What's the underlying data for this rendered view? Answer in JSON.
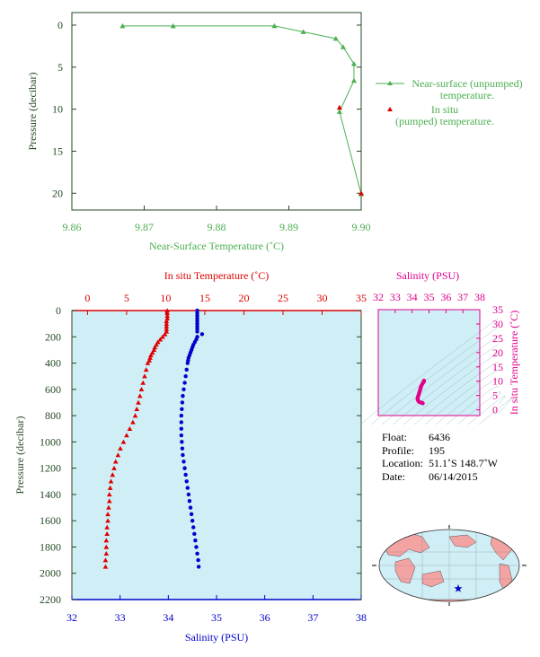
{
  "chart_data": [
    {
      "type": "line",
      "xlabel": "Near-Surface Temperature (˚C)",
      "ylabel": "Pressure (decibar)",
      "xlim": [
        9.86,
        9.9
      ],
      "ylim": [
        0,
        22
      ],
      "y_inverted": true,
      "x_ticks": [
        "9.86",
        "9.87",
        "9.88",
        "9.89",
        "9.90"
      ],
      "y_ticks": [
        "0",
        "5",
        "10",
        "15",
        "20"
      ],
      "legend_position": "right",
      "series": [
        {
          "name": "Near-surface (unpumped) temperature.",
          "color": "#4caf50",
          "marker": "triangle",
          "points": [
            [
              9.867,
              0.1
            ],
            [
              9.874,
              0.1
            ],
            [
              9.888,
              0.1
            ],
            [
              9.892,
              0.8
            ],
            [
              9.8965,
              1.6
            ],
            [
              9.8975,
              2.6
            ],
            [
              9.899,
              4.6
            ],
            [
              9.899,
              6.6
            ],
            [
              9.897,
              10.3
            ],
            [
              9.9,
              20.1
            ]
          ]
        },
        {
          "name": "In situ (pumped) temperature.",
          "color": "#e00000",
          "marker": "triangle",
          "points": [
            [
              9.897,
              9.8
            ],
            [
              9.9,
              20.0
            ]
          ]
        }
      ]
    },
    {
      "type": "scatter",
      "ylabel": "Pressure (decibar)",
      "ylim": [
        0,
        2200
      ],
      "y_inverted": true,
      "y_ticks": [
        "0",
        "200",
        "400",
        "600",
        "800",
        "1000",
        "1200",
        "1400",
        "1600",
        "1800",
        "2000",
        "2200"
      ],
      "top_axis": {
        "label": "In situ Temperature (˚C)",
        "lim": [
          -2,
          35
        ],
        "ticks": [
          "0",
          "5",
          "10",
          "15",
          "20",
          "25",
          "30",
          "35"
        ],
        "color": "#e00000"
      },
      "bottom_axis": {
        "label": "Salinity (PSU)",
        "lim": [
          32,
          38
        ],
        "ticks": [
          "32",
          "33",
          "34",
          "35",
          "36",
          "37",
          "38"
        ],
        "color": "#0000cc"
      },
      "series": [
        {
          "color": "#e00000",
          "marker": "triangle",
          "axis": "temperature",
          "points": [
            [
              10.2,
              0
            ],
            [
              10.2,
              20
            ],
            [
              10.2,
              40
            ],
            [
              10.2,
              60
            ],
            [
              10.1,
              80
            ],
            [
              10.1,
              100
            ],
            [
              10.1,
              120
            ],
            [
              10.1,
              140
            ],
            [
              10.1,
              160
            ],
            [
              9.9,
              180
            ],
            [
              9.6,
              200
            ],
            [
              9.3,
              220
            ],
            [
              9.0,
              240
            ],
            [
              8.8,
              260
            ],
            [
              8.6,
              280
            ],
            [
              8.5,
              300
            ],
            [
              8.3,
              320
            ],
            [
              8.1,
              340
            ],
            [
              8.0,
              360
            ],
            [
              7.9,
              380
            ],
            [
              7.7,
              400
            ],
            [
              7.5,
              450
            ],
            [
              7.3,
              500
            ],
            [
              7.1,
              550
            ],
            [
              6.9,
              600
            ],
            [
              6.7,
              650
            ],
            [
              6.5,
              700
            ],
            [
              6.3,
              750
            ],
            [
              6.1,
              800
            ],
            [
              5.8,
              850
            ],
            [
              5.4,
              900
            ],
            [
              5.0,
              950
            ],
            [
              4.6,
              1000
            ],
            [
              4.2,
              1050
            ],
            [
              3.9,
              1100
            ],
            [
              3.6,
              1150
            ],
            [
              3.4,
              1200
            ],
            [
              3.2,
              1250
            ],
            [
              3.0,
              1300
            ],
            [
              2.9,
              1350
            ],
            [
              2.8,
              1400
            ],
            [
              2.8,
              1450
            ],
            [
              2.7,
              1500
            ],
            [
              2.6,
              1550
            ],
            [
              2.6,
              1600
            ],
            [
              2.5,
              1650
            ],
            [
              2.5,
              1700
            ],
            [
              2.4,
              1750
            ],
            [
              2.4,
              1800
            ],
            [
              2.4,
              1850
            ],
            [
              2.3,
              1900
            ],
            [
              2.3,
              1950
            ]
          ]
        },
        {
          "color": "#0000cc",
          "marker": "circle",
          "axis": "salinity",
          "points": [
            [
              34.6,
              0
            ],
            [
              34.6,
              20
            ],
            [
              34.6,
              40
            ],
            [
              34.6,
              60
            ],
            [
              34.6,
              80
            ],
            [
              34.6,
              100
            ],
            [
              34.6,
              120
            ],
            [
              34.6,
              140
            ],
            [
              34.6,
              160
            ],
            [
              34.7,
              180
            ],
            [
              34.6,
              200
            ],
            [
              34.58,
              220
            ],
            [
              34.55,
              240
            ],
            [
              34.52,
              260
            ],
            [
              34.5,
              280
            ],
            [
              34.48,
              300
            ],
            [
              34.46,
              320
            ],
            [
              34.44,
              340
            ],
            [
              34.42,
              360
            ],
            [
              34.41,
              380
            ],
            [
              34.4,
              400
            ],
            [
              34.38,
              450
            ],
            [
              34.36,
              500
            ],
            [
              34.34,
              550
            ],
            [
              34.32,
              600
            ],
            [
              34.3,
              650
            ],
            [
              34.29,
              700
            ],
            [
              34.28,
              750
            ],
            [
              34.27,
              800
            ],
            [
              34.27,
              850
            ],
            [
              34.27,
              900
            ],
            [
              34.27,
              950
            ],
            [
              34.28,
              1000
            ],
            [
              34.29,
              1050
            ],
            [
              34.3,
              1100
            ],
            [
              34.32,
              1150
            ],
            [
              34.34,
              1200
            ],
            [
              34.36,
              1250
            ],
            [
              34.38,
              1300
            ],
            [
              34.4,
              1350
            ],
            [
              34.42,
              1400
            ],
            [
              34.44,
              1450
            ],
            [
              34.46,
              1500
            ],
            [
              34.48,
              1550
            ],
            [
              34.5,
              1600
            ],
            [
              34.52,
              1650
            ],
            [
              34.54,
              1700
            ],
            [
              34.56,
              1750
            ],
            [
              34.58,
              1800
            ],
            [
              34.6,
              1850
            ],
            [
              34.62,
              1900
            ],
            [
              34.63,
              1950
            ]
          ]
        }
      ]
    },
    {
      "type": "scatter",
      "xlabel": "Salinity (PSU)",
      "ylabel": "In situ Temperature (˚C)",
      "xlim": [
        32,
        38
      ],
      "ylim": [
        -2,
        35
      ],
      "x_ticks": [
        "32",
        "33",
        "34",
        "35",
        "36",
        "37",
        "38"
      ],
      "y_ticks": [
        "0",
        "5",
        "10",
        "15",
        "20",
        "25",
        "30",
        "35"
      ],
      "color": "#e0008a",
      "marker": "circle",
      "points": [
        [
          34.7,
          10.2
        ],
        [
          34.7,
          9.9
        ],
        [
          34.65,
          9.5
        ],
        [
          34.6,
          9.0
        ],
        [
          34.55,
          8.5
        ],
        [
          34.52,
          8.0
        ],
        [
          34.5,
          7.5
        ],
        [
          34.47,
          7.0
        ],
        [
          34.45,
          6.5
        ],
        [
          34.42,
          6.0
        ],
        [
          34.4,
          5.5
        ],
        [
          34.37,
          5.0
        ],
        [
          34.35,
          4.6
        ],
        [
          34.33,
          4.2
        ],
        [
          34.32,
          3.8
        ],
        [
          34.34,
          3.4
        ],
        [
          34.38,
          3.0
        ],
        [
          34.42,
          2.8
        ],
        [
          34.48,
          2.6
        ],
        [
          34.55,
          2.5
        ],
        [
          34.6,
          2.4
        ],
        [
          34.63,
          2.3
        ]
      ]
    }
  ],
  "info": {
    "float_label": "Float:",
    "float_value": "6436",
    "profile_label": "Profile:",
    "profile_value": "195",
    "location_label": "Location:",
    "location_value": "51.1˚S  148.7˚W",
    "date_label": "Date:",
    "date_value": "06/14/2015"
  },
  "map": {
    "land_color": "#f4a3a3",
    "ocean_color": "#cfeef6",
    "marker": "star",
    "marker_color": "#0000cc"
  },
  "colors": {
    "green": "#4caf50",
    "red": "#e00000",
    "blue": "#0000cc",
    "magenta": "#e0008a",
    "axis_dark": "#244a24",
    "panel_bg": "#cfeef6"
  }
}
